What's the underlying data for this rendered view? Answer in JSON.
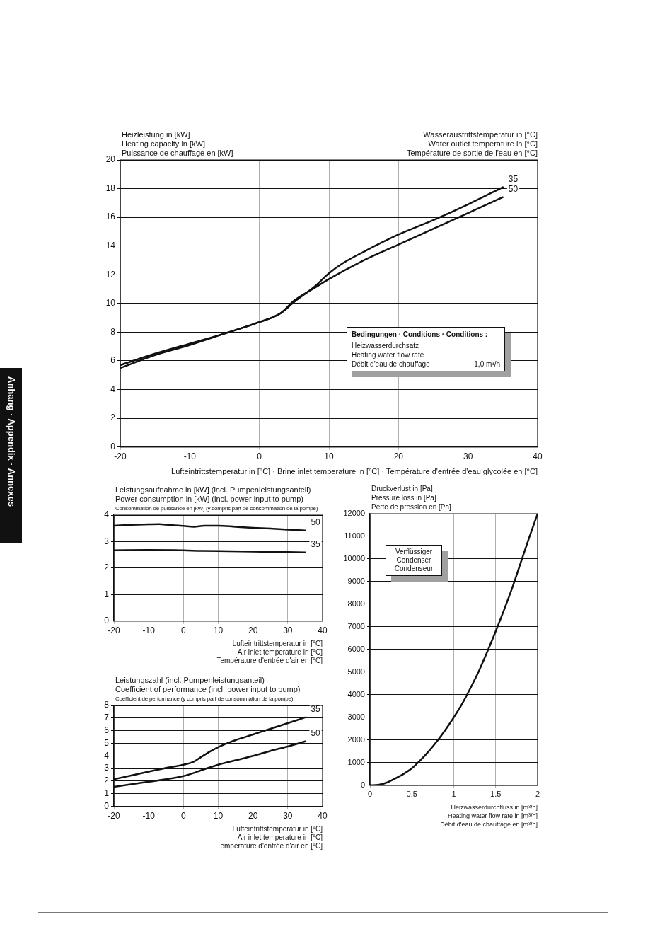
{
  "chart_data": [
    {
      "type": "line",
      "ylabel": "Heizleistung in [kW]\nHeating capacity in [kW]\nPuissance de chauffage en [kW]",
      "legend_title": "Wasseraustrittstemperatur in [°C]\nWater outlet temperature in [°C]\nTempérature de sortie de l'eau en [°C]",
      "xlabel": "Lufteintrittstemperatur in [°C] · Brine inlet temperature in [°C] · Température d'entrée d'eau glycolée en [°C]",
      "xlim": [
        -20,
        40
      ],
      "xticks": [
        -20,
        -10,
        0,
        10,
        20,
        30,
        40
      ],
      "ylim": [
        0,
        20
      ],
      "yticks": [
        0,
        2,
        4,
        6,
        8,
        10,
        12,
        14,
        16,
        18,
        20
      ],
      "grid": true,
      "legend": false,
      "annotations": [
        "Bedingungen · Conditions · Conditions :",
        "Heizwasserdurchsatz\nHeating water flow rate\nDébit d'eau de chauffage",
        "1,0 m³/h",
        "Anhang · Appendix · Annexes"
      ],
      "series": [
        {
          "name": "35",
          "color": "#111111",
          "x": [
            -20,
            -15,
            -10,
            -5,
            0,
            3,
            5,
            8,
            10,
            12,
            15,
            20,
            25,
            30,
            35
          ],
          "values": [
            5.7,
            6.5,
            7.2,
            7.9,
            8.7,
            9.3,
            10.1,
            11.2,
            12.1,
            12.8,
            13.6,
            14.8,
            15.8,
            16.9,
            18.1
          ]
        },
        {
          "name": "50",
          "color": "#111111",
          "x": [
            -20,
            -15,
            -10,
            -5,
            0,
            3,
            5,
            8,
            10,
            15,
            20,
            25,
            30,
            35
          ],
          "values": [
            5.5,
            6.4,
            7.1,
            7.9,
            8.7,
            9.3,
            10.2,
            11.1,
            11.7,
            13.0,
            14.1,
            15.2,
            16.3,
            17.4
          ]
        }
      ]
    },
    {
      "type": "line",
      "ylabel": "Leistungsaufnahme in [kW] (incl. Pumpenleistungsanteil)\nPower consumption in [kW] (incl. power input to pump)\nConsommation de puissance en [kW] (y compris part de consommation de la pompe)",
      "xlabel": "Lufteintrittstemperatur in [°C]\nAir inlet temperature in [°C]\nTempérature d'entrée d'air en [°C]",
      "xlim": [
        -20,
        40
      ],
      "xticks": [
        -20,
        -10,
        0,
        10,
        20,
        30,
        40
      ],
      "ylim": [
        0,
        4
      ],
      "yticks": [
        0,
        1,
        2,
        3,
        4
      ],
      "grid": true,
      "legend": false,
      "series": [
        {
          "name": "50",
          "color": "#111111",
          "x": [
            -20,
            -15,
            -10,
            -7,
            -5,
            0,
            3,
            6,
            10,
            15,
            20,
            25,
            30,
            35
          ],
          "values": [
            3.6,
            3.63,
            3.65,
            3.66,
            3.64,
            3.59,
            3.56,
            3.6,
            3.6,
            3.56,
            3.52,
            3.49,
            3.45,
            3.42
          ]
        },
        {
          "name": "35",
          "color": "#111111",
          "x": [
            -20,
            -10,
            0,
            5,
            10,
            20,
            30,
            35
          ],
          "values": [
            2.67,
            2.68,
            2.67,
            2.65,
            2.64,
            2.62,
            2.6,
            2.59
          ]
        }
      ]
    },
    {
      "type": "line",
      "ylabel": "Leistungszahl (incl. Pumpenleistungsanteil)\nCoefficient of performance (incl. power input to pump)\nCoefficient de performance (y compris part de consommation de la pompe)",
      "xlabel": "Lufteintrittstemperatur in [°C]\nAir inlet temperature in [°C]\nTempérature d'entrée d'air en [°C]",
      "xlim": [
        -20,
        40
      ],
      "xticks": [
        -20,
        -10,
        0,
        10,
        20,
        30,
        40
      ],
      "ylim": [
        0,
        8
      ],
      "yticks": [
        0,
        1,
        2,
        3,
        4,
        5,
        6,
        7,
        8
      ],
      "grid": true,
      "legend": false,
      "series": [
        {
          "name": "35",
          "color": "#111111",
          "x": [
            -20,
            -15,
            -10,
            -5,
            0,
            3,
            5,
            8,
            10,
            13,
            15,
            20,
            25,
            30,
            35
          ],
          "values": [
            2.15,
            2.45,
            2.75,
            3.05,
            3.3,
            3.55,
            3.9,
            4.4,
            4.7,
            5.05,
            5.25,
            5.7,
            6.15,
            6.6,
            7.05
          ]
        },
        {
          "name": "50",
          "color": "#111111",
          "x": [
            -20,
            -10,
            -5,
            0,
            3,
            5,
            10,
            15,
            20,
            25,
            30,
            35
          ],
          "values": [
            1.55,
            1.95,
            2.15,
            2.4,
            2.65,
            2.85,
            3.3,
            3.65,
            4.0,
            4.4,
            4.75,
            5.15
          ]
        }
      ]
    },
    {
      "type": "line",
      "ylabel": "Druckverlust in [Pa]\nPressure loss in [Pa]\nPerte de pression en [Pa]",
      "xlabel": "Heizwasserdurchfluss in [m³/h]\nHeating water flow rate in [m³/h]\nDébit d'eau de chauffage en [m³/h]",
      "xlim": [
        0,
        2
      ],
      "xticks": [
        0,
        0.5,
        1,
        1.5,
        2
      ],
      "ylim": [
        0,
        12000
      ],
      "yticks": [
        0,
        1000,
        2000,
        3000,
        4000,
        5000,
        6000,
        7000,
        8000,
        9000,
        10000,
        11000,
        12000
      ],
      "grid": true,
      "legend": false,
      "annotations": [
        "Verflüssiger\nCondenser\nCondenseur"
      ],
      "series": [
        {
          "color": "#111111",
          "x": [
            0,
            0.1,
            0.2,
            0.3,
            0.4,
            0.5,
            0.6,
            0.7,
            0.8,
            0.9,
            1.0,
            1.1,
            1.2,
            1.3,
            1.4,
            1.5,
            1.6,
            1.7,
            1.8,
            1.9,
            2.0
          ],
          "values": [
            0,
            20,
            120,
            300,
            500,
            750,
            1100,
            1500,
            1950,
            2450,
            3000,
            3600,
            4300,
            5050,
            5900,
            6800,
            7750,
            8750,
            9850,
            10950,
            12000
          ]
        }
      ]
    }
  ]
}
